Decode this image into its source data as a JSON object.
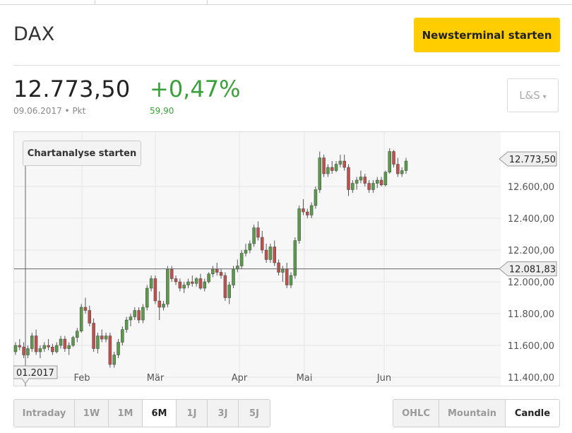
{
  "header": {
    "title": "DAX",
    "news_button": "Newsterminal starten"
  },
  "quote": {
    "price": "12.773,50",
    "date": "09.06.2017",
    "unit": "Pkt",
    "change_pct": "+0,47%",
    "change_abs": "59,90",
    "exchange_button": "L&S",
    "exchange_caret": "▾"
  },
  "chart_controls": {
    "analysis_button": "Chartanalyse starten"
  },
  "range_tabs": [
    "Intraday",
    "1W",
    "1M",
    "6M",
    "1J",
    "3J",
    "5J"
  ],
  "range_active": "6M",
  "type_tabs": [
    "OHLC",
    "Mountain",
    "Candle"
  ],
  "type_active": "Candle",
  "colors": {
    "up": "#5a9a4a",
    "down": "#c0504d",
    "accent": "#ffcd00",
    "positive": "#3aa13a"
  },
  "chart_data": {
    "type": "candlestick",
    "ylim": [
      11400,
      12900
    ],
    "y_ticks": [
      "11.400,00",
      "11.600,00",
      "11.800,00",
      "12.000,00",
      "12.200,00",
      "12.400,00",
      "12.600,00"
    ],
    "x_labels": [
      "01.2017",
      "Feb",
      "Mär",
      "Apr",
      "Mai",
      "Jun"
    ],
    "last_price_label": "12.773,50",
    "last_price": 12773.5,
    "reference_label": "12.081,83",
    "reference_value": 12081.83,
    "grid": true,
    "series": [
      {
        "values": [
          [
            11560,
            11620,
            11540,
            11600
          ],
          [
            11600,
            11640,
            11570,
            11590
          ],
          [
            11590,
            11620,
            11520,
            11540
          ],
          [
            11540,
            11600,
            11520,
            11580
          ],
          [
            11580,
            11680,
            11560,
            11660
          ],
          [
            11660,
            11700,
            11540,
            11560
          ],
          [
            11560,
            11600,
            11520,
            11580
          ],
          [
            11580,
            11620,
            11560,
            11600
          ],
          [
            11600,
            11640,
            11570,
            11590
          ],
          [
            11590,
            11610,
            11540,
            11560
          ],
          [
            11560,
            11620,
            11550,
            11600
          ],
          [
            11600,
            11660,
            11580,
            11640
          ],
          [
            11640,
            11660,
            11560,
            11580
          ],
          [
            11580,
            11620,
            11540,
            11600
          ],
          [
            11600,
            11660,
            11590,
            11650
          ],
          [
            11650,
            11710,
            11620,
            11690
          ],
          [
            11690,
            11860,
            11680,
            11840
          ],
          [
            11840,
            11900,
            11800,
            11820
          ],
          [
            11820,
            11850,
            11720,
            11740
          ],
          [
            11740,
            11770,
            11560,
            11580
          ],
          [
            11580,
            11680,
            11550,
            11660
          ],
          [
            11660,
            11700,
            11620,
            11640
          ],
          [
            11640,
            11680,
            11620,
            11660
          ],
          [
            11660,
            11680,
            11460,
            11480
          ],
          [
            11480,
            11560,
            11460,
            11540
          ],
          [
            11540,
            11640,
            11520,
            11620
          ],
          [
            11620,
            11720,
            11600,
            11700
          ],
          [
            11700,
            11780,
            11680,
            11760
          ],
          [
            11760,
            11800,
            11720,
            11780
          ],
          [
            11780,
            11840,
            11760,
            11820
          ],
          [
            11820,
            11840,
            11740,
            11760
          ],
          [
            11760,
            11860,
            11740,
            11840
          ],
          [
            11840,
            11980,
            11820,
            11960
          ],
          [
            11960,
            12040,
            11940,
            12020
          ],
          [
            12020,
            12040,
            11860,
            11880
          ],
          [
            11880,
            11940,
            11760,
            11840
          ],
          [
            11840,
            11880,
            11820,
            11860
          ],
          [
            11860,
            12100,
            11840,
            12080
          ],
          [
            12080,
            12100,
            12000,
            12020
          ],
          [
            12020,
            12040,
            11980,
            12000
          ],
          [
            12000,
            12020,
            11940,
            11960
          ],
          [
            11960,
            12000,
            11930,
            11980
          ],
          [
            11980,
            12020,
            11960,
            12000
          ],
          [
            12000,
            12040,
            11970,
            11990
          ],
          [
            11990,
            12030,
            11970,
            12020
          ],
          [
            12020,
            12050,
            11950,
            11960
          ],
          [
            11960,
            12020,
            11940,
            12000
          ],
          [
            12000,
            12060,
            11990,
            12050
          ],
          [
            12050,
            12100,
            12030,
            12080
          ],
          [
            12080,
            12120,
            12040,
            12060
          ],
          [
            12060,
            12080,
            12020,
            12040
          ],
          [
            12040,
            12060,
            11880,
            11900
          ],
          [
            11900,
            12000,
            11860,
            11980
          ],
          [
            11980,
            12100,
            11960,
            12080
          ],
          [
            12080,
            12140,
            12060,
            12100
          ],
          [
            12100,
            12200,
            12080,
            12180
          ],
          [
            12180,
            12240,
            12160,
            12200
          ],
          [
            12200,
            12260,
            12180,
            12240
          ],
          [
            12240,
            12360,
            12220,
            12340
          ],
          [
            12340,
            12380,
            12260,
            12280
          ],
          [
            12280,
            12320,
            12180,
            12200
          ],
          [
            12200,
            12240,
            12120,
            12140
          ],
          [
            12140,
            12240,
            12120,
            12220
          ],
          [
            12220,
            12260,
            12100,
            12120
          ],
          [
            12120,
            12140,
            12040,
            12060
          ],
          [
            12060,
            12100,
            12000,
            12080
          ],
          [
            12080,
            12120,
            11960,
            11980
          ],
          [
            11980,
            12060,
            11960,
            12040
          ],
          [
            12040,
            12280,
            12020,
            12260
          ],
          [
            12260,
            12480,
            12240,
            12460
          ],
          [
            12460,
            12520,
            12420,
            12440
          ],
          [
            12440,
            12460,
            12400,
            12420
          ],
          [
            12420,
            12500,
            12400,
            12480
          ],
          [
            12480,
            12600,
            12460,
            12580
          ],
          [
            12580,
            12820,
            12560,
            12780
          ],
          [
            12780,
            12800,
            12660,
            12680
          ],
          [
            12680,
            12740,
            12660,
            12720
          ],
          [
            12720,
            12760,
            12680,
            12700
          ],
          [
            12700,
            12760,
            12690,
            12740
          ],
          [
            12740,
            12800,
            12720,
            12760
          ],
          [
            12760,
            12800,
            12700,
            12720
          ],
          [
            12720,
            12740,
            12540,
            12580
          ],
          [
            12580,
            12640,
            12560,
            12620
          ],
          [
            12620,
            12660,
            12580,
            12640
          ],
          [
            12640,
            12700,
            12620,
            12660
          ],
          [
            12660,
            12680,
            12600,
            12620
          ],
          [
            12620,
            12640,
            12560,
            12580
          ],
          [
            12580,
            12640,
            12560,
            12620
          ],
          [
            12620,
            12660,
            12590,
            12640
          ],
          [
            12640,
            12660,
            12600,
            12610
          ],
          [
            12610,
            12700,
            12600,
            12690
          ],
          [
            12690,
            12840,
            12680,
            12820
          ],
          [
            12820,
            12830,
            12720,
            12740
          ],
          [
            12740,
            12780,
            12660,
            12680
          ],
          [
            12680,
            12720,
            12660,
            12700
          ],
          [
            12700,
            12780,
            12680,
            12760
          ]
        ]
      }
    ]
  }
}
